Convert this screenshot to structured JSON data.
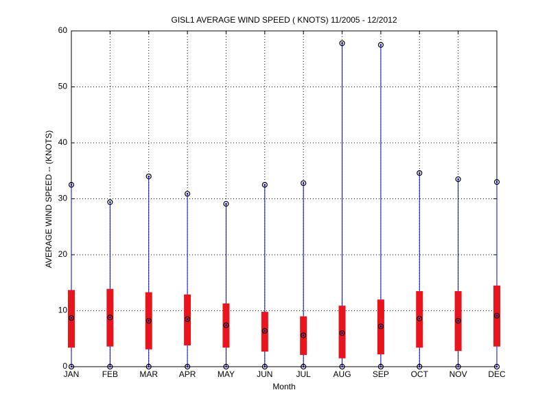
{
  "chart_data": {
    "type": "box",
    "title": "GISL1  AVERAGE WIND SPEED ( KNOTS) 11/2005 - 12/2012",
    "xlabel": "Month",
    "ylabel": "AVERAGE WIND SPEED -- (KNOTS)",
    "categories": [
      "JAN",
      "FEB",
      "MAR",
      "APR",
      "MAY",
      "JUN",
      "JUL",
      "AUG",
      "SEP",
      "OCT",
      "NOV",
      "DEC"
    ],
    "min": [
      0,
      0,
      0,
      0,
      0,
      0,
      0,
      0,
      0,
      0,
      0,
      0
    ],
    "q1": [
      3.4,
      3.6,
      3.1,
      3.8,
      3.4,
      2.7,
      2.1,
      1.5,
      2.2,
      3.4,
      2.8,
      3.6
    ],
    "median": [
      8.7,
      8.8,
      8.2,
      8.5,
      7.4,
      6.4,
      5.6,
      6.0,
      7.2,
      8.6,
      8.2,
      9.1
    ],
    "q3": [
      13.7,
      13.9,
      13.3,
      12.9,
      11.3,
      9.8,
      9.0,
      10.9,
      12.0,
      13.5,
      13.5,
      14.5
    ],
    "max": [
      32.5,
      29.4,
      34.0,
      30.9,
      29.1,
      32.5,
      32.8,
      57.8,
      57.5,
      34.6,
      33.5,
      33.0
    ],
    "whisker_color": "#0000cc",
    "box_color": "#e8141e",
    "ylim": [
      0,
      60
    ],
    "yticks": [
      0,
      10,
      20,
      30,
      40,
      50,
      60
    ],
    "grid": true
  }
}
